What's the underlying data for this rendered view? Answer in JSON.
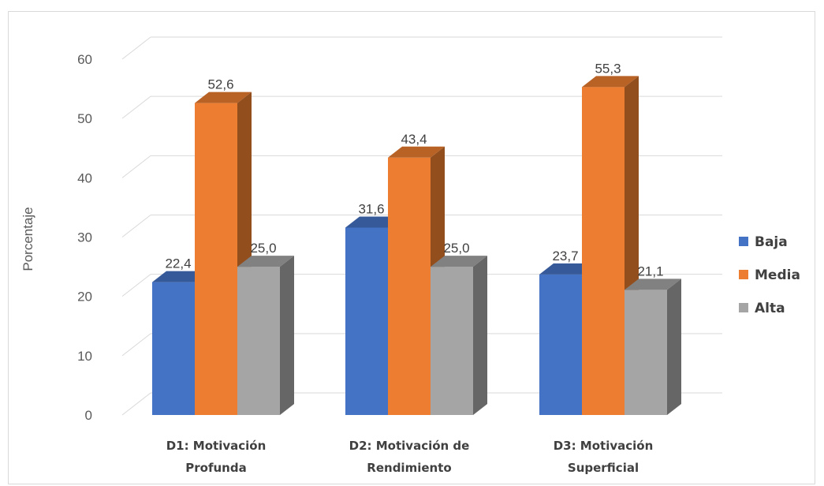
{
  "chart_data": {
    "type": "bar",
    "style": "3d-clustered-column",
    "categories": [
      [
        "D1: Motivación",
        "Profunda"
      ],
      [
        "D2: Motivación de",
        "Rendimiento"
      ],
      [
        "D3: Motivación",
        "Superficial"
      ]
    ],
    "series": [
      {
        "name": "Baja",
        "color": "#4472c4",
        "values": [
          22.4,
          31.6,
          23.7
        ],
        "labels": [
          "22,4",
          "31,6",
          "23,7"
        ]
      },
      {
        "name": "Media",
        "color": "#ed7d31",
        "values": [
          52.6,
          43.4,
          55.3
        ],
        "labels": [
          "52,6",
          "43,4",
          "55,3"
        ]
      },
      {
        "name": "Alta",
        "color": "#a5a5a5",
        "values": [
          25.0,
          25.0,
          21.1
        ],
        "labels": [
          "25,0",
          "25,0",
          "21,1"
        ]
      }
    ],
    "ylabel": "Porcentaje",
    "ylim": [
      0,
      60
    ],
    "yticks": [
      0,
      10,
      20,
      30,
      40,
      50,
      60
    ],
    "ytick_labels": [
      "0",
      "10",
      "20",
      "30",
      "40",
      "50",
      "60"
    ],
    "grid": true,
    "legend_position": "right"
  }
}
